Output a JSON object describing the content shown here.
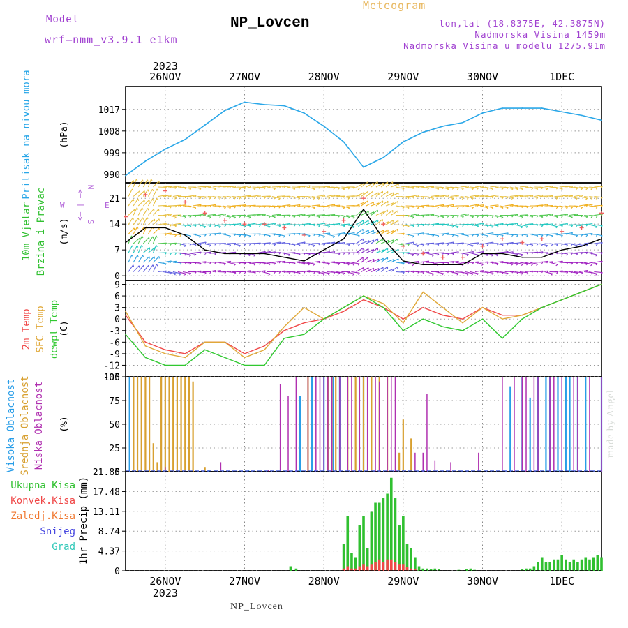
{
  "header": {
    "product": "Meteogram",
    "title": "NP_Lovcen",
    "model_label": "Model",
    "model_value": "wrf–nmm_v3.9.1  e1km",
    "location_lines": [
      "lon,lat (18.8375E, 42.3875N)",
      "Nadmorska Visina 1459m",
      "Nadmorska Visina u modelu 1275.91m"
    ],
    "footer_station": "NP_Lovcen",
    "watermark": "made by Angel"
  },
  "colors": {
    "pressure": "#2aa7e8",
    "temp_2m": "#f04848",
    "temp_sfc": "#e0a838",
    "temp_dew": "#30c830",
    "cloud_high": "#2a9ee8",
    "cloud_mid": "#d8a030",
    "cloud_low": "#b030b0",
    "cloud_mix": "#4860d8",
    "precip_total": "#30c030",
    "precip_conv": "#f04848",
    "gust_marker": "#f06060",
    "wind_speed": "#000000",
    "axis_label_pressure": "#2aa7e8",
    "axis_label_wind": "#30c030",
    "axis_label_compass": "#b060d8"
  },
  "chart_data": [
    {
      "type": "line",
      "panel": "pressure",
      "ylabel_lines": [
        "Pritisak na nivou mora"
      ],
      "unit": "(hPa)",
      "yticks": [
        990,
        999,
        1008,
        1017
      ],
      "ylim": [
        986.5,
        1026.5
      ],
      "x_days": [
        0,
        0.25,
        0.5,
        0.75,
        1.0,
        1.25,
        1.5,
        1.75,
        2.0,
        2.25,
        2.5,
        2.75,
        3.0,
        3.25,
        3.5,
        3.75,
        4.0,
        4.25,
        4.5,
        4.75,
        5.0,
        5.25,
        5.5,
        5.75,
        6.0
      ],
      "series": [
        {
          "key": "pressure",
          "values": [
            989.5,
            995.5,
            1000.5,
            1004.5,
            1010.5,
            1016.5,
            1020.0,
            1019.0,
            1018.5,
            1015.5,
            1010.0,
            1003.5,
            993.0,
            997.0,
            1003.5,
            1007.5,
            1010.0,
            1011.5,
            1015.5,
            1017.5,
            1017.5,
            1017.5,
            1016.0,
            1014.5,
            1012.5
          ]
        }
      ]
    },
    {
      "type": "line",
      "panel": "wind",
      "ylabel_lines": [
        "10m Vjetar",
        "Brzina i Pravac"
      ],
      "unit": "(m/s)",
      "compass": [
        "N",
        "<– | –>",
        "S",
        "W",
        "E"
      ],
      "yticks": [
        0,
        7,
        14,
        21
      ],
      "ylim": [
        -1.3,
        25.2
      ],
      "x_days": [
        0,
        0.25,
        0.5,
        0.75,
        1.0,
        1.25,
        1.5,
        1.75,
        2.0,
        2.25,
        2.5,
        2.75,
        3.0,
        3.25,
        3.5,
        3.75,
        4.0,
        4.25,
        4.5,
        4.75,
        5.0,
        5.25,
        5.5,
        5.75,
        6.0
      ],
      "series": [
        {
          "key": "wind_speed",
          "values": [
            9,
            13,
            13,
            11,
            7,
            6,
            6,
            6,
            5,
            4,
            7,
            10,
            18,
            10,
            4,
            3,
            3,
            3,
            6,
            6,
            5,
            5,
            7,
            8,
            10
          ]
        },
        {
          "key": "gust_marker",
          "values": [
            16,
            22,
            23,
            20,
            17,
            15,
            14,
            14,
            13,
            11,
            12,
            15,
            21,
            14,
            8,
            6,
            5,
            5,
            8,
            10,
            9,
            10,
            12,
            13,
            17
          ]
        }
      ]
    },
    {
      "type": "line",
      "panel": "temperature",
      "ylabel_lines": [
        "2m Temp",
        "SFC Temp",
        "dewpt Temp"
      ],
      "unit": "(C)",
      "yticks": [
        -15,
        -12,
        -9,
        -6,
        -3,
        0,
        3,
        6,
        9
      ],
      "ylim": [
        -15,
        10
      ],
      "x_days": [
        0,
        0.25,
        0.5,
        0.75,
        1.0,
        1.25,
        1.5,
        1.75,
        2.0,
        2.25,
        2.5,
        2.75,
        3.0,
        3.25,
        3.5,
        3.75,
        4.0,
        4.25,
        4.5,
        4.75,
        5.0,
        5.25,
        5.5,
        5.75,
        6.0
      ],
      "series": [
        {
          "key": "temp_2m",
          "values": [
            1,
            -6,
            -8,
            -9,
            -6,
            -6,
            -9,
            -7,
            -3,
            -1,
            0,
            2,
            5,
            3,
            0,
            3,
            1,
            0,
            3,
            1,
            1,
            3,
            5,
            7,
            9
          ]
        },
        {
          "key": "temp_sfc",
          "values": [
            2,
            -7,
            -9,
            -10,
            -6,
            -6,
            -10,
            -8,
            -2,
            3,
            0,
            3,
            6,
            4,
            -1,
            7,
            3,
            -1,
            3,
            0,
            1,
            3,
            5,
            7,
            9
          ]
        },
        {
          "key": "temp_dew",
          "values": [
            -4,
            -10,
            -12,
            -12,
            -8,
            -10,
            -12,
            -12,
            -5,
            -4,
            0,
            3,
            6,
            3,
            -3,
            0,
            -2,
            -3,
            0,
            -5,
            0,
            3,
            5,
            7,
            9
          ]
        }
      ]
    },
    {
      "type": "bar",
      "panel": "clouds",
      "ylabel_lines": [
        "Visoka Oblacnost",
        "Srednja Oblacnost",
        "Niska Oblacnost"
      ],
      "unit": "(%)",
      "yticks": [
        0,
        25,
        50,
        75,
        100
      ],
      "ylim": [
        0,
        100
      ],
      "series": [
        {
          "key": "cloud_high",
          "x_days": [
            0.05,
            1.05,
            1.55,
            2.2,
            2.35,
            2.5,
            2.55,
            2.62,
            2.7,
            3.0,
            4.85,
            5.0,
            5.1,
            5.2,
            5.3,
            5.35,
            5.45,
            5.55,
            5.6,
            5.7,
            5.8,
            6.0
          ],
          "values": [
            100,
            2,
            2,
            80,
            100,
            100,
            100,
            100,
            100,
            100,
            90,
            100,
            78,
            100,
            100,
            100,
            100,
            100,
            100,
            100,
            100,
            100
          ]
        },
        {
          "key": "cloud_mid",
          "x_days": [
            0.1,
            0.15,
            0.2,
            0.25,
            0.3,
            0.35,
            0.4,
            0.45,
            0.5,
            0.55,
            0.6,
            0.65,
            0.7,
            0.75,
            0.8,
            0.85,
            1.0,
            2.3,
            2.55,
            2.6,
            2.65,
            2.8,
            2.9,
            3.0,
            3.1,
            3.2,
            3.3,
            3.45,
            3.5,
            3.6
          ],
          "values": [
            100,
            100,
            100,
            100,
            100,
            30,
            10,
            100,
            100,
            100,
            100,
            100,
            100,
            100,
            100,
            95,
            5,
            100,
            100,
            100,
            100,
            100,
            100,
            100,
            100,
            100,
            100,
            20,
            55,
            35
          ]
        },
        {
          "key": "cloud_low",
          "x_days": [
            0.5,
            1.2,
            1.8,
            1.95,
            2.05,
            2.15,
            2.3,
            2.4,
            2.45,
            2.5,
            2.55,
            2.6,
            2.7,
            2.8,
            2.85,
            2.95,
            3.05,
            3.15,
            3.2,
            3.3,
            3.35,
            3.4,
            3.65,
            3.75,
            3.8,
            3.9,
            4.1,
            4.45,
            4.75,
            4.9,
            5.0,
            5.05,
            5.15,
            5.2,
            5.35,
            5.4,
            5.5,
            5.65,
            5.7,
            5.85,
            6.0
          ],
          "values": [
            5,
            10,
            2,
            92,
            80,
            100,
            100,
            100,
            100,
            100,
            100,
            100,
            100,
            100,
            100,
            100,
            100,
            100,
            95,
            100,
            100,
            100,
            20,
            20,
            82,
            12,
            10,
            20,
            100,
            100,
            100,
            100,
            100,
            100,
            100,
            100,
            100,
            100,
            100,
            100,
            100
          ]
        }
      ]
    },
    {
      "type": "bar",
      "panel": "precipitation",
      "legend": [
        "Ukupna Kisa",
        "Konvek.Kisa",
        "Zaledj.Kisa",
        "Snijeg",
        "Grad"
      ],
      "legend_colors": [
        "#30c030",
        "#f04848",
        "#f07830",
        "#4848e0",
        "#30c8b8"
      ],
      "ylabel_lines": [
        "1hr Precip (mm)"
      ],
      "yticks": [
        "0",
        "4.37",
        "8.74",
        "13.11",
        "17.48",
        "21.85"
      ],
      "ylim": [
        0,
        21.85
      ],
      "x_days": [
        2.08,
        2.15,
        2.75,
        2.8,
        2.85,
        2.9,
        2.95,
        3.0,
        3.05,
        3.1,
        3.15,
        3.2,
        3.25,
        3.3,
        3.35,
        3.4,
        3.45,
        3.5,
        3.55,
        3.6,
        3.65,
        3.7,
        3.75,
        3.8,
        3.85,
        3.9,
        3.95,
        4.0,
        4.05,
        4.1,
        4.15,
        4.2,
        4.25,
        4.3,
        4.35,
        4.4,
        4.45,
        4.5,
        4.55,
        4.6,
        4.65,
        4.7,
        4.75,
        4.8,
        4.85,
        4.9,
        4.95,
        5.0,
        5.05,
        5.1,
        5.15,
        5.2,
        5.25,
        5.3,
        5.35,
        5.4,
        5.45,
        5.5,
        5.55,
        5.6,
        5.65,
        5.7,
        5.75,
        5.8,
        5.85,
        5.9,
        5.95,
        6.0
      ],
      "series": [
        {
          "key": "precip_total",
          "values": [
            1,
            0.5,
            6,
            12,
            4,
            3,
            10,
            12,
            5,
            13,
            15,
            15,
            16,
            17,
            20.5,
            16,
            10,
            12,
            6,
            5,
            3,
            1,
            0.5,
            0.5,
            0.3,
            0.5,
            0.3,
            0,
            0,
            0,
            0,
            0.2,
            0,
            0.3,
            0.5,
            0.2,
            0,
            0,
            0,
            0,
            0,
            0,
            0,
            0,
            0,
            0,
            0,
            0.3,
            0.5,
            0.5,
            1,
            2,
            3,
            2,
            2,
            2.5,
            2.5,
            3.5,
            2.5,
            2,
            2.5,
            2,
            2.5,
            3,
            2.5,
            3,
            3.5,
            3
          ]
        },
        {
          "key": "precip_conv",
          "values": [
            0,
            0,
            0.5,
            1,
            0.5,
            0.5,
            1,
            1.5,
            1,
            1.5,
            2,
            2.5,
            2,
            2.5,
            2.5,
            2,
            1.5,
            1.5,
            0.8,
            0.5,
            0.3,
            0,
            0,
            0,
            0,
            0,
            0,
            0,
            0,
            0,
            0,
            0,
            0,
            0,
            0,
            0,
            0,
            0,
            0,
            0,
            0,
            0,
            0,
            0,
            0,
            0,
            0,
            0,
            0,
            0,
            0,
            0,
            0,
            0,
            0,
            0,
            0,
            0,
            0,
            0,
            0,
            0,
            0,
            0,
            0,
            0,
            0,
            0
          ]
        }
      ]
    }
  ],
  "x_axis": {
    "top_labels": [
      "26NOV",
      "27NOV",
      "28NOV",
      "29NOV",
      "30NOV",
      "1DEC"
    ],
    "top_year": "2023",
    "bottom_labels": [
      "26NOV",
      "27NOV",
      "28NOV",
      "29NOV",
      "30NOV",
      "1DEC"
    ],
    "bottom_year": "2023",
    "day_positions": [
      0.5,
      1.5,
      2.5,
      3.5,
      4.5,
      5.5
    ],
    "xlim": [
      0,
      6
    ]
  }
}
